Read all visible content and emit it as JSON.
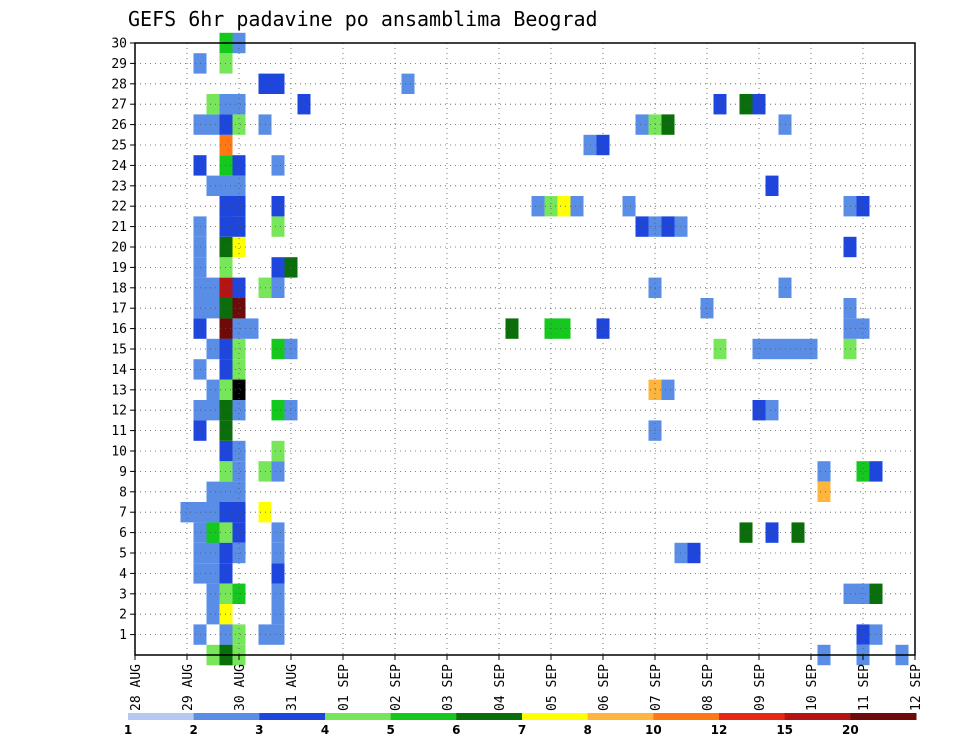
{
  "chart_data": {
    "type": "heatmap",
    "title": "GEFS 6hr padavine po ansamblima Beograd",
    "x_ticks": [
      "28 AUG",
      "29 AUG",
      "30 AUG",
      "31 AUG",
      "01 SEP",
      "02 SEP",
      "03 SEP",
      "04 SEP",
      "05 SEP",
      "06 SEP",
      "07 SEP",
      "08 SEP",
      "09 SEP",
      "10 SEP",
      "11 SEP",
      "12 SEP"
    ],
    "xlim_days": [
      0,
      15
    ],
    "y_ticks": [
      1,
      2,
      3,
      4,
      5,
      6,
      7,
      8,
      9,
      10,
      11,
      12,
      13,
      14,
      15,
      16,
      17,
      18,
      19,
      20,
      21,
      22,
      23,
      24,
      25,
      26,
      27,
      28,
      29,
      30
    ],
    "ylim": [
      0,
      30
    ],
    "grid": true,
    "legend_position": "bottom",
    "legend": {
      "labels": [
        "1",
        "2",
        "3",
        "4",
        "5",
        "6",
        "7",
        "8",
        "10",
        "12",
        "15",
        "20"
      ],
      "colors": [
        "#b4c8f0",
        "#5a8ee6",
        "#1e46dc",
        "#78e65a",
        "#14c81e",
        "#0a6e0a",
        "#ffff00",
        "#ffb43c",
        "#ff7814",
        "#e62814",
        "#b41414",
        "#6e0a0a"
      ]
    },
    "cells": [
      [
        1.25,
        1,
        1
      ],
      [
        1.75,
        0,
        2
      ],
      [
        1.5,
        3,
        1
      ],
      [
        1.5,
        4,
        1
      ],
      [
        1.5,
        5,
        1
      ],
      [
        1.5,
        6,
        2
      ],
      [
        1.5,
        8,
        1
      ],
      [
        1.75,
        8,
        1
      ],
      [
        1.25,
        12,
        1
      ],
      [
        1.5,
        12,
        1
      ],
      [
        1.5,
        13,
        1
      ],
      [
        1.25,
        11,
        2
      ],
      [
        1.5,
        17,
        1
      ],
      [
        1.25,
        16,
        2
      ],
      [
        1.5,
        18,
        1
      ],
      [
        1.25,
        19,
        1
      ],
      [
        1.25,
        20,
        1
      ],
      [
        1.25,
        21,
        1
      ],
      [
        1.25,
        26,
        1
      ],
      [
        1.5,
        26,
        1
      ],
      [
        1.25,
        29,
        1
      ],
      [
        1.25,
        24,
        2
      ],
      [
        1.5,
        23,
        1
      ],
      [
        1.25,
        17,
        1
      ],
      [
        1.25,
        18,
        1
      ],
      [
        1.25,
        14,
        1
      ],
      [
        1.75,
        14,
        1
      ],
      [
        1.5,
        15,
        1
      ],
      [
        1.75,
        16,
        2
      ],
      [
        1.75,
        17,
        1
      ],
      [
        1.75,
        22,
        1
      ],
      [
        1.5,
        27,
        3
      ],
      [
        1.75,
        27,
        1
      ],
      [
        1.75,
        25,
        8
      ],
      [
        1.75,
        24,
        4
      ],
      [
        1.75,
        26,
        2
      ],
      [
        1.5,
        7,
        1
      ],
      [
        1.75,
        6,
        3
      ],
      [
        1.5,
        6,
        4
      ],
      [
        1.25,
        6,
        1
      ],
      [
        1.25,
        5,
        1
      ],
      [
        1.75,
        5,
        2
      ],
      [
        1.25,
        4,
        1
      ],
      [
        1.75,
        4,
        2
      ],
      [
        1.75,
        3,
        3
      ],
      [
        1.5,
        2,
        1
      ],
      [
        1.75,
        2,
        6
      ],
      [
        1.75,
        1,
        1
      ],
      [
        1.5,
        0,
        3
      ],
      [
        1.75,
        0,
        5
      ],
      [
        1.0,
        7,
        1
      ],
      [
        1.25,
        7,
        1
      ],
      [
        1.75,
        7,
        2
      ],
      [
        1.75,
        9,
        3
      ],
      [
        1.75,
        10,
        2
      ],
      [
        1.75,
        11,
        5
      ],
      [
        1.75,
        13,
        3
      ],
      [
        1.75,
        14,
        2
      ],
      [
        1.75,
        15,
        2
      ],
      [
        1.75,
        16,
        11
      ],
      [
        1.75,
        17,
        5
      ],
      [
        1.75,
        18,
        10
      ],
      [
        1.75,
        19,
        3
      ],
      [
        1.75,
        20,
        5
      ],
      [
        1.75,
        21,
        2
      ],
      [
        1.75,
        22,
        2
      ],
      [
        1.75,
        23,
        1
      ],
      [
        1.75,
        29,
        3
      ],
      [
        1.75,
        30,
        4
      ],
      [
        1.75,
        12,
        5
      ],
      [
        2.0,
        14,
        3
      ],
      [
        2.0,
        13,
        12
      ],
      [
        2.0,
        12,
        1
      ],
      [
        2.0,
        10,
        1
      ],
      [
        2.0,
        9,
        1
      ],
      [
        2.0,
        8,
        1
      ],
      [
        2.0,
        7,
        2
      ],
      [
        2.0,
        6,
        2
      ],
      [
        2.0,
        5,
        1
      ],
      [
        2.0,
        3,
        4
      ],
      [
        2.0,
        1,
        3
      ],
      [
        2.0,
        0,
        3
      ],
      [
        2.0,
        15,
        3
      ],
      [
        2.0,
        16,
        1
      ],
      [
        2.0,
        17,
        11
      ],
      [
        2.0,
        18,
        2
      ],
      [
        2.0,
        20,
        6
      ],
      [
        2.0,
        21,
        2
      ],
      [
        2.0,
        22,
        2
      ],
      [
        2.0,
        23,
        1
      ],
      [
        2.0,
        24,
        2
      ],
      [
        2.0,
        26,
        3
      ],
      [
        2.0,
        27,
        1
      ],
      [
        2.0,
        30,
        1
      ],
      [
        2.25,
        16,
        1
      ],
      [
        2.5,
        1,
        1
      ],
      [
        2.75,
        1,
        1
      ],
      [
        2.75,
        2,
        1
      ],
      [
        2.75,
        3,
        1
      ],
      [
        2.75,
        4,
        2
      ],
      [
        2.75,
        5,
        1
      ],
      [
        2.75,
        6,
        1
      ],
      [
        2.5,
        7,
        6
      ],
      [
        2.5,
        9,
        3
      ],
      [
        2.75,
        9,
        1
      ],
      [
        2.75,
        10,
        3
      ],
      [
        2.75,
        12,
        4
      ],
      [
        3.0,
        12,
        1
      ],
      [
        2.75,
        15,
        4
      ],
      [
        3.0,
        15,
        1
      ],
      [
        2.5,
        18,
        3
      ],
      [
        2.75,
        18,
        1
      ],
      [
        2.75,
        19,
        2
      ],
      [
        3.0,
        19,
        5
      ],
      [
        2.75,
        21,
        3
      ],
      [
        2.75,
        22,
        2
      ],
      [
        2.75,
        24,
        1
      ],
      [
        2.5,
        26,
        1
      ],
      [
        2.5,
        28,
        2
      ],
      [
        2.75,
        28,
        2
      ],
      [
        3.25,
        27,
        2
      ],
      [
        5.25,
        28,
        1
      ],
      [
        7.25,
        16,
        5
      ],
      [
        7.75,
        22,
        1
      ],
      [
        8.0,
        22,
        3
      ],
      [
        8.25,
        22,
        6
      ],
      [
        8.5,
        22,
        1
      ],
      [
        8.0,
        16,
        4
      ],
      [
        8.25,
        16,
        4
      ],
      [
        8.75,
        25,
        1
      ],
      [
        9.0,
        25,
        2
      ],
      [
        9.0,
        16,
        2
      ],
      [
        9.5,
        22,
        1
      ],
      [
        9.75,
        21,
        2
      ],
      [
        10.0,
        21,
        1
      ],
      [
        10.25,
        21,
        2
      ],
      [
        10.5,
        21,
        1
      ],
      [
        9.75,
        26,
        1
      ],
      [
        10.0,
        26,
        3
      ],
      [
        10.25,
        26,
        5
      ],
      [
        10.0,
        18,
        1
      ],
      [
        10.0,
        13,
        7
      ],
      [
        10.25,
        13,
        1
      ],
      [
        10.0,
        11,
        1
      ],
      [
        10.5,
        5,
        1
      ],
      [
        10.75,
        5,
        2
      ],
      [
        11.0,
        17,
        1
      ],
      [
        11.25,
        15,
        3
      ],
      [
        11.25,
        27,
        2
      ],
      [
        11.75,
        27,
        5
      ],
      [
        12.0,
        27,
        2
      ],
      [
        11.75,
        6,
        5
      ],
      [
        12.25,
        6,
        2
      ],
      [
        12.75,
        6,
        5
      ],
      [
        12.0,
        15,
        1
      ],
      [
        12.25,
        15,
        1
      ],
      [
        12.5,
        15,
        1
      ],
      [
        12.0,
        12,
        2
      ],
      [
        12.25,
        12,
        1
      ],
      [
        12.5,
        18,
        1
      ],
      [
        12.25,
        23,
        2
      ],
      [
        12.5,
        26,
        1
      ],
      [
        12.75,
        15,
        1
      ],
      [
        13.0,
        15,
        1
      ],
      [
        13.25,
        9,
        1
      ],
      [
        13.25,
        0,
        1
      ],
      [
        13.25,
        8,
        7
      ],
      [
        13.75,
        3,
        1
      ],
      [
        14.0,
        3,
        1
      ],
      [
        13.75,
        15,
        3
      ],
      [
        13.75,
        16,
        1
      ],
      [
        14.0,
        16,
        1
      ],
      [
        13.75,
        17,
        1
      ],
      [
        13.75,
        20,
        2
      ],
      [
        13.75,
        22,
        1
      ],
      [
        14.0,
        22,
        2
      ],
      [
        14.0,
        9,
        4
      ],
      [
        14.25,
        9,
        2
      ],
      [
        14.0,
        1,
        2
      ],
      [
        14.25,
        1,
        1
      ],
      [
        14.25,
        3,
        5
      ],
      [
        14.0,
        0,
        1
      ],
      [
        14.75,
        0,
        1
      ]
    ]
  }
}
